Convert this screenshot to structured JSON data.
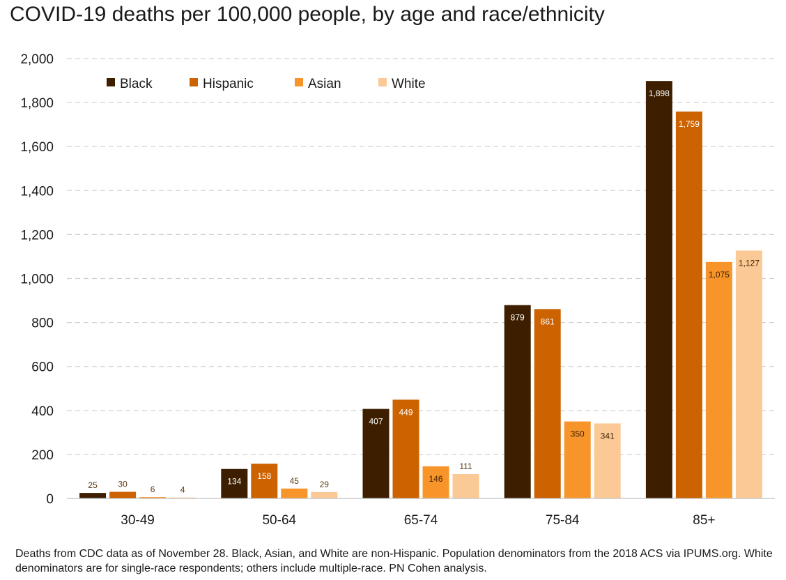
{
  "chart_data": {
    "type": "bar",
    "title": "COVID-19 deaths per 100,000 people, by age and race/ethnicity",
    "xlabel": "",
    "ylabel": "",
    "categories": [
      "30-49",
      "50-64",
      "65-74",
      "75-84",
      "85+"
    ],
    "series": [
      {
        "name": "Black",
        "color": "#3d1f00",
        "values": [
          25,
          134,
          407,
          879,
          1898
        ],
        "labels": [
          "25",
          "134",
          "407",
          "879",
          "1,898"
        ]
      },
      {
        "name": "Hispanic",
        "color": "#cc6200",
        "values": [
          30,
          158,
          449,
          861,
          1759
        ],
        "labels": [
          "30",
          "158",
          "449",
          "861",
          "1,759"
        ]
      },
      {
        "name": "Asian",
        "color": "#f7952b",
        "values": [
          6,
          45,
          146,
          350,
          1075
        ],
        "labels": [
          "6",
          "45",
          "146",
          "350",
          "1,075"
        ]
      },
      {
        "name": "White",
        "color": "#fbc995",
        "values": [
          4,
          29,
          111,
          341,
          1127
        ],
        "labels": [
          "4",
          "29",
          "111",
          "341",
          "1,127"
        ]
      }
    ],
    "ylim": [
      0,
      2000
    ],
    "yticks": [
      0,
      200,
      400,
      600,
      800,
      1000,
      1200,
      1400,
      1600,
      1800,
      2000
    ],
    "ytick_labels": [
      "0",
      "200",
      "400",
      "600",
      "800",
      "1,000",
      "1,200",
      "1,400",
      "1,600",
      "1,800",
      "2,000"
    ],
    "grid": true,
    "legend_position": "top-left"
  },
  "footnote": "Deaths from CDC data as of November 28. Black, Asian, and White are non-Hispanic. Population denominators from the 2018 ACS via IPUMS.org. White denominators are for single-race respondents; others include multiple-race. PN Cohen analysis."
}
